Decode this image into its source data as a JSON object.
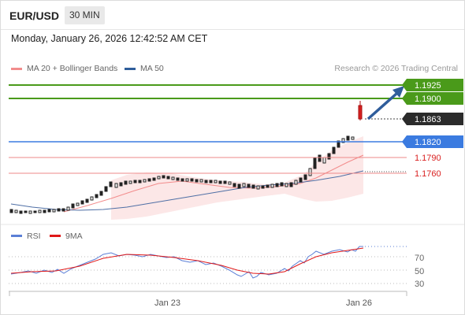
{
  "header": {
    "symbol": "EUR/USD",
    "timeframe": "30 MIN"
  },
  "datetime": "Monday, January 26, 2026 12:42:52 AM CET",
  "legend": {
    "ma20": {
      "label": "MA 20 + Bollinger Bands",
      "color": "#f28c8c"
    },
    "ma50": {
      "label": "MA 50",
      "color": "#2f5d9b"
    },
    "credit": "Research © 2026 Trading Central"
  },
  "levels": [
    {
      "price": 1.1925,
      "label": "1.1925",
      "kind": "resistance",
      "color": "#4a9a1a"
    },
    {
      "price": 1.19,
      "label": "1.1900",
      "kind": "resistance",
      "color": "#4a9a1a"
    },
    {
      "price": 1.1863,
      "label": "1.1863",
      "kind": "last",
      "color": "#2b2b2b"
    },
    {
      "price": 1.182,
      "label": "1.1820",
      "kind": "pivot",
      "color": "#3b7be0"
    },
    {
      "price": 1.179,
      "label": "1.1790",
      "kind": "support",
      "color": "#e05050"
    },
    {
      "price": 1.176,
      "label": "1.1760",
      "kind": "support",
      "color": "#e05050"
    }
  ],
  "rsi": {
    "legend_rsi": {
      "label": "RSI",
      "color": "#5b7fd6"
    },
    "legend_ma": {
      "label": "9MA",
      "color": "#e01818"
    },
    "ticks": [
      "70",
      "50",
      "30"
    ]
  },
  "xaxis": {
    "labels": [
      "Jan 23",
      "Jan 26"
    ]
  }
}
